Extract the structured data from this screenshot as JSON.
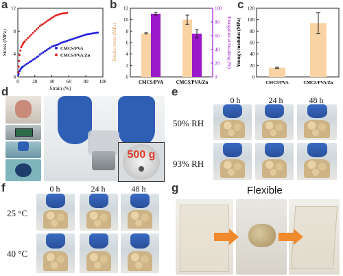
{
  "panels": {
    "a": "a",
    "b": "b",
    "c": "c",
    "d": "d",
    "e": "e",
    "f": "f",
    "g": "g"
  },
  "colors": {
    "pva": "#1f1fd6",
    "zn": "#e02020",
    "bar_orange": "#f9d3a4",
    "bar_purple": "#9b19c9",
    "axis_purple": "#9b19c9",
    "glove_blue": "#2f5fb5",
    "arrow_orange": "#f08a2c"
  },
  "chart_data": [
    {
      "type": "scatter",
      "panel": "a",
      "xlabel": "Strain (%)",
      "ylabel": "Stress (MPa)",
      "xlim": [
        0,
        100
      ],
      "ylim": [
        0,
        12
      ],
      "xticks": [
        "0",
        "20",
        "40",
        "60",
        "80",
        "100"
      ],
      "yticks": [
        "0",
        "4",
        "8",
        "12"
      ],
      "legend_position": "lower-right",
      "series": [
        {
          "name": "CMCS/PVA",
          "color": "#1f1fd6",
          "x": [
            0.5,
            1,
            2,
            3,
            4,
            5,
            6,
            8,
            10,
            12,
            14,
            16,
            18,
            20,
            22,
            24,
            26,
            28,
            30,
            32,
            34,
            36,
            38,
            40,
            42,
            44,
            46,
            48,
            50,
            52,
            54,
            56,
            58,
            60,
            62,
            64,
            66,
            68,
            70,
            72,
            74,
            76,
            78,
            80,
            82,
            84,
            86,
            88,
            90,
            92,
            94
          ],
          "y": [
            0.3,
            0.6,
            1.0,
            1.3,
            1.5,
            1.7,
            1.8,
            2.0,
            2.2,
            2.4,
            2.6,
            2.8,
            3.0,
            3.2,
            3.4,
            3.6,
            3.9,
            4.1,
            4.3,
            4.5,
            4.7,
            4.9,
            5.1,
            5.3,
            5.4,
            5.5,
            5.6,
            5.7,
            5.9,
            6.0,
            6.1,
            6.2,
            6.3,
            6.4,
            6.5,
            6.6,
            6.7,
            6.8,
            6.9,
            7.0,
            7.1,
            7.2,
            7.3,
            7.4,
            7.45,
            7.5,
            7.55,
            7.6,
            7.65,
            7.7,
            7.75
          ]
        },
        {
          "name": "CMCS/PVA/Zn",
          "color": "#e02020",
          "x": [
            0.5,
            1,
            1.5,
            2,
            3,
            4,
            5,
            6,
            7,
            8,
            10,
            12,
            14,
            16,
            18,
            20,
            22,
            24,
            26,
            28,
            30,
            32,
            34,
            36,
            38,
            40,
            42,
            44,
            46,
            48,
            50,
            52,
            54,
            56,
            58
          ],
          "y": [
            0.8,
            1.8,
            2.8,
            3.8,
            4.6,
            5.2,
            5.5,
            5.8,
            6.0,
            6.2,
            6.5,
            6.8,
            7.1,
            7.4,
            7.7,
            8.0,
            8.3,
            8.6,
            8.9,
            9.1,
            9.3,
            9.5,
            9.7,
            9.9,
            10.1,
            10.3,
            10.5,
            10.7,
            10.8,
            10.9,
            11.0,
            11.05,
            11.1,
            11.15,
            11.2
          ]
        }
      ]
    },
    {
      "type": "bar",
      "panel": "b",
      "categories": [
        "CMCS/PVA",
        "CMCS/PVA/Zn"
      ],
      "ylabel": "Tensile stress (MPa)",
      "y2label": "Elongation at breaking (%)",
      "ylim": [
        0,
        12
      ],
      "y2lim": [
        0,
        100
      ],
      "yticks": [
        "0",
        "2",
        "4",
        "6",
        "8",
        "10",
        "12"
      ],
      "y2ticks": [
        "0",
        "20",
        "40",
        "60",
        "80",
        "100"
      ],
      "series": [
        {
          "name": "Tensile stress",
          "axis": "left",
          "color": "#f9d3a4",
          "values": [
            7.6,
            10.0
          ],
          "errors": [
            0.1,
            0.8
          ]
        },
        {
          "name": "Elongation at breaking",
          "axis": "right",
          "color": "#9b19c9",
          "values": [
            92,
            63
          ],
          "errors": [
            2,
            6
          ]
        }
      ]
    },
    {
      "type": "bar",
      "panel": "c",
      "categories": [
        "CMCS/PVA",
        "CMCS/PVA/Zn"
      ],
      "ylabel": "Young's modulus (MPa)",
      "ylim": [
        0,
        120
      ],
      "yticks": [
        "0",
        "20",
        "40",
        "60",
        "80",
        "100",
        "120"
      ],
      "series": [
        {
          "name": "Young's modulus",
          "color": "#f9d3a4",
          "values": [
            16,
            94
          ],
          "errors": [
            1,
            18
          ]
        }
      ]
    }
  ],
  "panel_d": {
    "weight_label": "500 g"
  },
  "panel_e": {
    "times": [
      "0 h",
      "24 h",
      "48 h"
    ],
    "rows": [
      "50% RH",
      "93% RH"
    ]
  },
  "panel_f": {
    "times": [
      "0 h",
      "24 h",
      "48 h"
    ],
    "rows": [
      "25 °C",
      "40 °C"
    ]
  },
  "panel_g": {
    "title": "Flexible"
  }
}
